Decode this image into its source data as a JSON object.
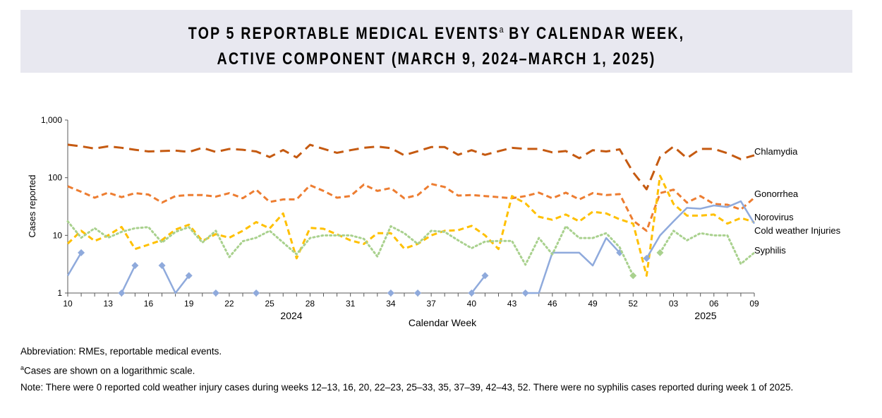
{
  "title": {
    "line1_before_sup": "TOP 5 REPORTABLE MEDICAL EVENTS",
    "sup": "a",
    "line1_after_sup": " BY CALENDAR WEEK,",
    "line2": "ACTIVE COMPONENT (MARCH 9, 2024–MARCH 1, 2025)"
  },
  "chart_data": {
    "type": "line",
    "xlabel": "Calendar Week",
    "ylabel": "Cases reported",
    "yscale": "log",
    "ylim": [
      1,
      1000
    ],
    "yticks": [
      "1",
      "10",
      "100",
      "1,000"
    ],
    "year_labels": [
      "2024",
      "2025"
    ],
    "x": [
      "10",
      "11",
      "12",
      "13",
      "14",
      "15",
      "16",
      "17",
      "18",
      "19",
      "20",
      "21",
      "22",
      "23",
      "24",
      "25",
      "26",
      "27",
      "28",
      "29",
      "30",
      "31",
      "32",
      "33",
      "34",
      "35",
      "36",
      "37",
      "38",
      "39",
      "40",
      "41",
      "42",
      "43",
      "44",
      "45",
      "46",
      "47",
      "48",
      "49",
      "50",
      "51",
      "52",
      "01",
      "02",
      "03",
      "04",
      "05",
      "06",
      "07",
      "08",
      "09"
    ],
    "xtick_labels": [
      "10",
      "13",
      "16",
      "19",
      "22",
      "25",
      "28",
      "31",
      "34",
      "37",
      "40",
      "43",
      "46",
      "49",
      "52",
      "03",
      "06",
      "09"
    ],
    "legend_placement": "right, labels at line ends",
    "series": [
      {
        "name": "Chlamydia",
        "color": "#c55a11",
        "style": "long-dash",
        "values": [
          374,
          350,
          320,
          350,
          330,
          305,
          285,
          290,
          295,
          280,
          330,
          280,
          315,
          305,
          285,
          228,
          302,
          225,
          372,
          316,
          270,
          300,
          330,
          347,
          325,
          245,
          288,
          340,
          340,
          250,
          300,
          249,
          288,
          330,
          316,
          316,
          275,
          290,
          218,
          300,
          285,
          310,
          124,
          63,
          229,
          347,
          218,
          316,
          316,
          266,
          209,
          245
        ]
      },
      {
        "name": "Gonorrhea",
        "color": "#ed7d31",
        "style": "dash",
        "values": [
          71,
          57,
          45,
          55,
          46,
          54,
          51,
          37,
          48,
          50,
          50,
          47,
          54,
          44,
          62,
          38,
          42,
          42,
          74,
          59,
          45,
          48,
          76,
          59,
          66,
          44,
          50,
          78,
          69,
          49,
          50,
          48,
          46,
          44,
          48,
          55,
          44,
          55,
          42,
          54,
          50,
          52,
          18,
          12,
          54,
          62,
          37,
          48,
          35,
          34,
          28,
          45
        ]
      },
      {
        "name": "Norovirus",
        "color": "#ffc000",
        "style": "dash",
        "values": [
          7.2,
          12,
          8,
          10,
          14,
          5.8,
          6.9,
          8.3,
          12.6,
          15.3,
          8,
          10.5,
          9.1,
          12,
          17,
          13.2,
          24,
          4,
          13.5,
          13,
          10.4,
          8.2,
          7.1,
          10.9,
          10.9,
          5.9,
          7.1,
          10,
          12,
          12.3,
          14.6,
          10,
          5.8,
          48,
          36,
          21,
          18.6,
          23,
          17.5,
          25.7,
          24,
          19,
          16,
          2,
          108,
          35,
          22,
          22,
          23,
          16,
          20,
          17
        ]
      },
      {
        "name": "Cold weather Injuries",
        "color": "#8faadc",
        "style": "solid",
        "values": [
          2,
          5,
          null,
          null,
          1,
          3,
          null,
          3,
          1,
          2,
          null,
          1,
          null,
          null,
          1,
          null,
          null,
          null,
          null,
          null,
          null,
          null,
          null,
          null,
          1,
          null,
          1,
          null,
          null,
          null,
          1,
          2,
          null,
          null,
          1,
          1,
          5,
          5,
          5,
          3,
          9,
          5,
          null,
          4,
          10,
          17.5,
          30,
          29,
          33,
          31,
          39,
          16
        ]
      },
      {
        "name": "Syphilis",
        "color": "#a9d18e",
        "style": "dotted",
        "values": [
          17.5,
          9.1,
          13.3,
          9.1,
          11.5,
          13.3,
          13.9,
          7.5,
          11.5,
          13.9,
          7.5,
          12,
          4.2,
          7.9,
          9.1,
          12,
          7.5,
          4.7,
          9,
          10,
          10,
          10,
          8.7,
          4.3,
          14.4,
          10.9,
          7.1,
          12,
          11.5,
          8.2,
          6,
          7.8,
          8,
          8,
          3.1,
          9,
          4.7,
          14.4,
          9,
          9,
          10.9,
          6.2,
          2,
          null,
          5,
          12,
          8.2,
          10.9,
          10,
          10,
          3.2,
          5
        ]
      }
    ]
  },
  "notes": {
    "abbreviation": "Abbreviation: RMEs, reportable medical events.",
    "footnote_sup": "a",
    "footnote": "Cases are shown on a logarithmic scale.",
    "note": "Note: There were 0 reported cold weather injury cases during weeks 12–13, 16, 20, 22–23, 25–33, 35, 37–39, 42–43, 52. There were no syphilis cases reported during week 1 of 2025."
  }
}
